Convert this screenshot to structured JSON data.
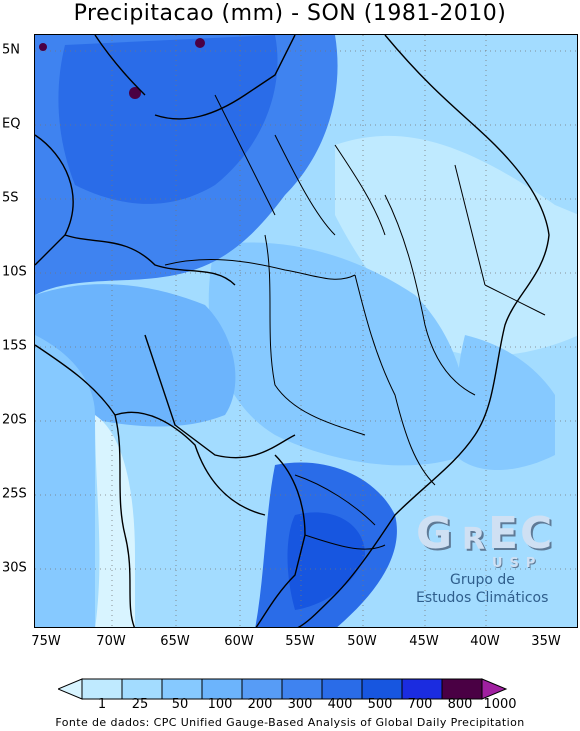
{
  "title": "Precipitacao (mm) - SON (1981-2010)",
  "source": "Fonte de dados: CPC Unified Gauge-Based Analysis of Global Daily Precipitation",
  "y_axis": [
    "5N",
    "EQ",
    "5S",
    "10S",
    "15S",
    "20S",
    "25S",
    "30S"
  ],
  "x_axis": [
    "75W",
    "70W",
    "65W",
    "60W",
    "55W",
    "50W",
    "45W",
    "40W",
    "35W"
  ],
  "legend": {
    "labels": [
      "1",
      "25",
      "50",
      "100",
      "200",
      "300",
      "400",
      "500",
      "700",
      "800",
      "1000"
    ],
    "colors": [
      "#d8f4ff",
      "#bfeaff",
      "#a3dcff",
      "#86c9ff",
      "#6cb4fc",
      "#579cf6",
      "#3f83f0",
      "#2a6ce8",
      "#1756e0",
      "#1b2ce0",
      "#4a0044",
      "#a020a0"
    ]
  },
  "logo": {
    "letters": [
      "G",
      "R",
      "E",
      "C"
    ],
    "usp": "USP",
    "line1": "Grupo de",
    "line2": "Estudos Climáticos"
  }
}
